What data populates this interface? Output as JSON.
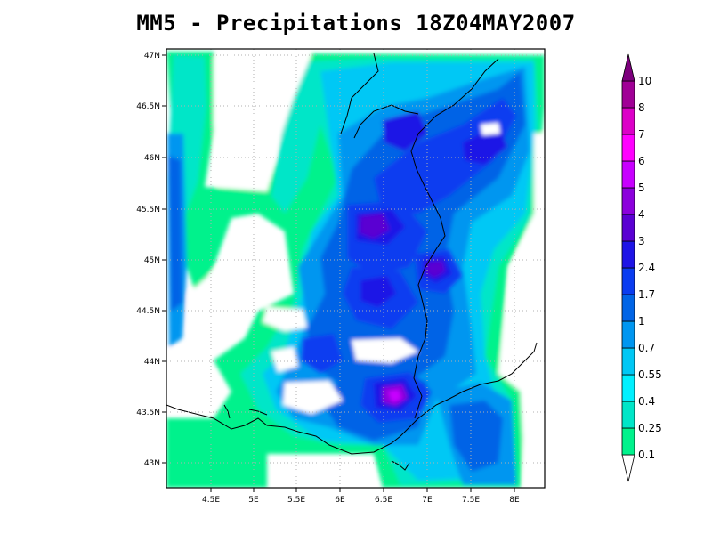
{
  "title": "MM5 - Precipitations 18Z04MAY2007",
  "map": {
    "lon_ticks": [
      "4.5E",
      "5E",
      "5.5E",
      "6E",
      "6.5E",
      "7E",
      "7.5E",
      "8E"
    ],
    "lat_ticks": [
      "43N",
      "43.5N",
      "44N",
      "44.5N",
      "45N",
      "45.5N",
      "46N",
      "46.5N",
      "47N"
    ],
    "lon_range": [
      3.97,
      8.33
    ],
    "lat_range": [
      42.78,
      47.05
    ],
    "grid": "dotted",
    "coastline_color": "#000000"
  },
  "colorbar": {
    "levels": [
      "0.1",
      "0.25",
      "0.4",
      "0.55",
      "0.7",
      "1",
      "1.7",
      "2.4",
      "3",
      "4",
      "5",
      "6",
      "7",
      "8",
      "10"
    ],
    "colors": [
      "#ffffff",
      "#00f28c",
      "#00e6c8",
      "#00f0ff",
      "#00c8f5",
      "#0096f0",
      "#0064e6",
      "#0a3cf0",
      "#1e14e6",
      "#5a00d2",
      "#8c00dc",
      "#c800ff",
      "#ff00ff",
      "#dc00c8",
      "#a00096",
      "#7d007d"
    ]
  }
}
